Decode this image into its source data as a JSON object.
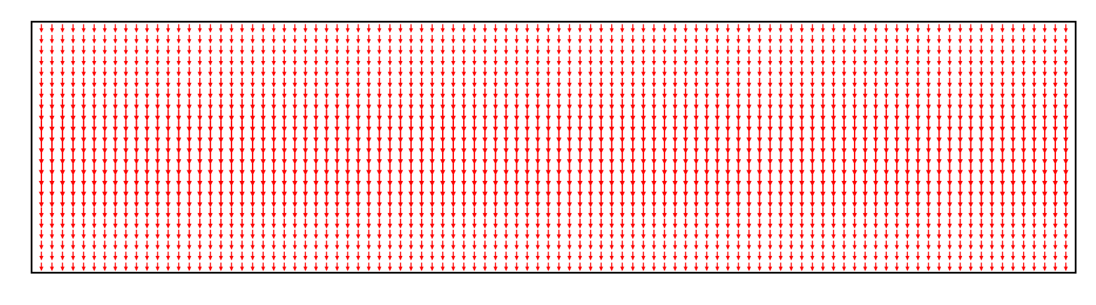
{
  "chart_data": {
    "type": "quiver",
    "title": "",
    "xlabel": "",
    "ylabel": "",
    "grid": false,
    "axis_ticks": false,
    "legend": "none",
    "arrow_color": "#ff0000",
    "frame_color": "#000000",
    "background": "#ffffff",
    "columns": 98,
    "rows": 23,
    "vector_direction": "down",
    "magnitude_by_row": [
      0.45,
      0.47,
      0.5,
      0.54,
      0.58,
      0.64,
      0.72,
      0.82,
      0.92,
      1.0,
      1.0,
      1.0,
      1.0,
      1.0,
      1.0,
      1.0,
      0.88,
      0.76,
      0.66,
      0.58,
      0.52,
      0.48,
      0.45
    ],
    "column_weight_high": [
      0,
      1,
      2,
      3,
      4,
      5,
      6,
      7,
      8,
      9,
      10,
      11,
      12,
      13,
      14,
      15,
      16,
      17,
      18,
      19,
      20,
      21,
      22,
      23,
      24,
      25,
      26,
      27,
      28,
      29,
      30,
      31,
      32,
      33,
      34,
      35,
      36,
      37,
      38,
      39,
      40,
      41,
      42,
      43,
      44,
      45,
      46,
      47,
      48,
      49,
      50,
      51,
      52,
      53,
      54,
      55,
      56,
      57,
      58,
      59,
      60,
      61,
      62,
      63,
      64,
      65,
      66,
      67,
      68,
      69,
      70,
      71,
      72,
      73,
      74,
      75,
      76,
      77,
      78,
      79,
      80,
      81,
      82,
      83,
      84,
      85,
      86,
      87,
      88,
      89,
      90,
      91,
      92,
      93,
      94,
      95,
      96,
      97
    ]
  }
}
